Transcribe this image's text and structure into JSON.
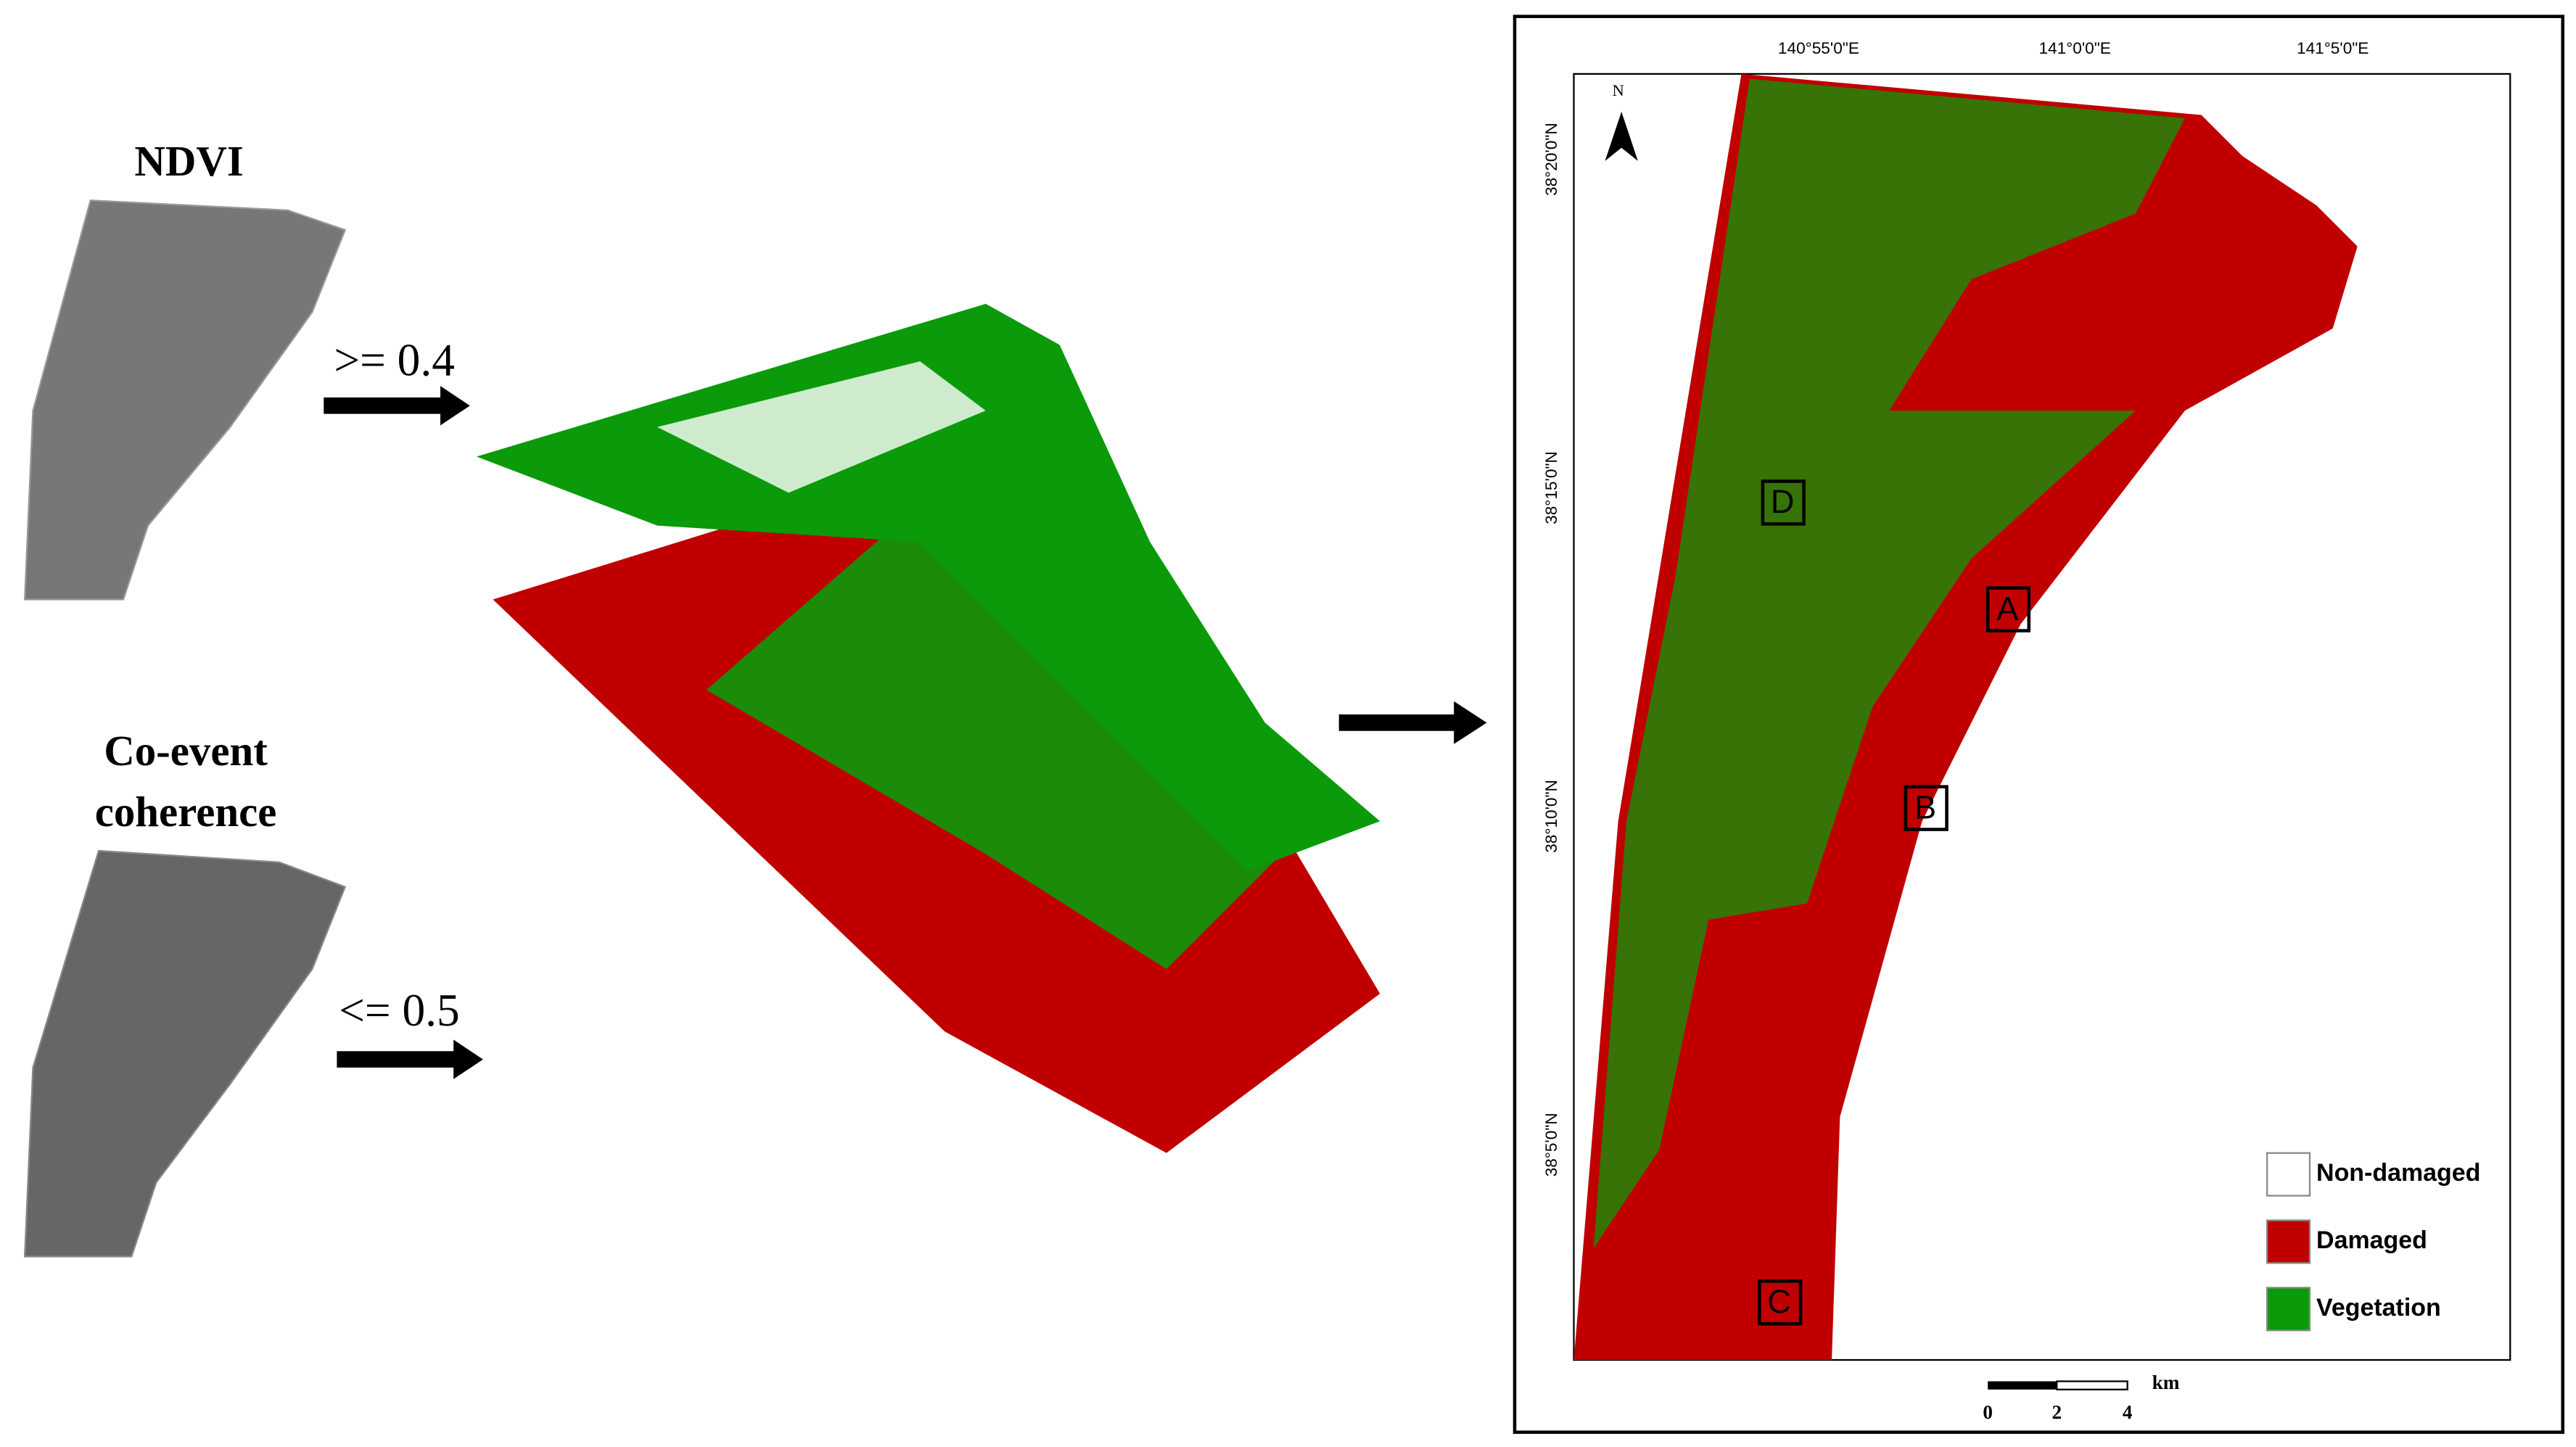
{
  "left": {
    "ndvi": {
      "title": "NDVI",
      "threshold": ">= 0.4"
    },
    "coherence": {
      "title_line1": "Co-event",
      "title_line2": "coherence",
      "threshold": "<= 0.5"
    }
  },
  "map": {
    "north": "N",
    "lon_labels": [
      "140°55'0\"E",
      "141°0'0\"E",
      "141°5'0\"E"
    ],
    "lat_labels": [
      "38°20'0\"N",
      "38°15'0\"N",
      "38°10'0\"N",
      "38°5'0\"N"
    ],
    "sites": [
      "D",
      "A",
      "B",
      "C"
    ],
    "legend": [
      "Non-damaged",
      "Damaged",
      "Vegetation"
    ],
    "scale": {
      "ticks": [
        "0",
        "2",
        "4"
      ],
      "unit": "km"
    }
  }
}
